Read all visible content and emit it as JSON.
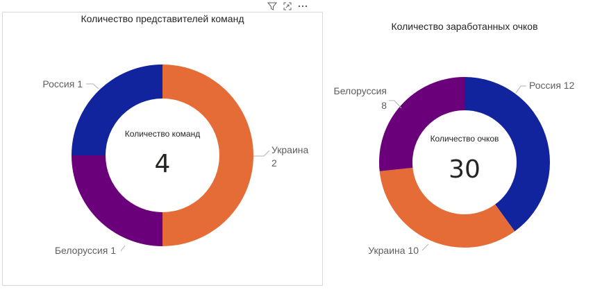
{
  "colors": {
    "russia": "#12239E",
    "ukraine": "#E66C37",
    "belarus": "#6B007B"
  },
  "header_icons": [
    "filter-icon",
    "focus-mode-icon",
    "more-options-icon"
  ],
  "chart_data": [
    {
      "type": "pie",
      "variant": "donut",
      "title": "Количество представителей команд",
      "center_label": "Количество команд",
      "center_value": "4",
      "slices": [
        {
          "name": "Украина",
          "value": 2,
          "color": "#E66C37",
          "label_lines": [
            "Украина",
            "2"
          ]
        },
        {
          "name": "Белоруссия",
          "value": 1,
          "color": "#6B007B",
          "label_lines": [
            "Белоруссия 1"
          ]
        },
        {
          "name": "Россия",
          "value": 1,
          "color": "#12239E",
          "label_lines": [
            "Россия 1"
          ]
        }
      ]
    },
    {
      "type": "pie",
      "variant": "donut",
      "title": "Количество заработанных очков",
      "center_label": "Количество очков",
      "center_value": "30",
      "slices": [
        {
          "name": "Россия",
          "value": 12,
          "color": "#12239E",
          "label_lines": [
            "Россия 12"
          ]
        },
        {
          "name": "Украина",
          "value": 10,
          "color": "#E66C37",
          "label_lines": [
            "Украина 10"
          ]
        },
        {
          "name": "Белоруссия",
          "value": 8,
          "color": "#6B007B",
          "label_lines": [
            "Белоруссия",
            "8"
          ]
        }
      ]
    }
  ]
}
